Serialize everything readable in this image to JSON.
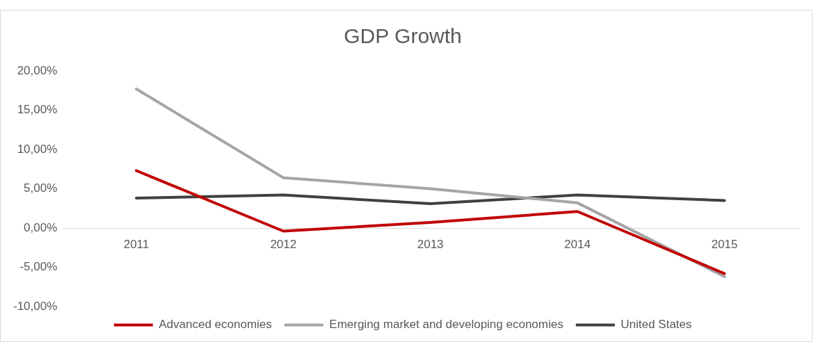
{
  "chart_data": {
    "type": "line",
    "title": "GDP Growth",
    "categories": [
      "2011",
      "2012",
      "2013",
      "2014",
      "2015"
    ],
    "series": [
      {
        "name": "Advanced economies",
        "color": "#c00000",
        "values": [
          7.3,
          -0.4,
          0.7,
          2.1,
          -5.8
        ]
      },
      {
        "name": "Emerging market and developing economies",
        "color": "#a5a5a5",
        "values": [
          17.7,
          6.4,
          5.0,
          3.2,
          -6.2
        ]
      },
      {
        "name": "United States",
        "color": "#404040",
        "values": [
          3.8,
          4.2,
          3.1,
          4.2,
          3.5
        ]
      }
    ],
    "ylim": [
      -10,
      20
    ],
    "yticks": [
      {
        "value": -10,
        "label": "-10,00%"
      },
      {
        "value": -5,
        "label": "-5,00%"
      },
      {
        "value": 0,
        "label": "0,00%"
      },
      {
        "value": 5,
        "label": "5,00%"
      },
      {
        "value": 10,
        "label": "10,00%"
      },
      {
        "value": 15,
        "label": "15,00%"
      },
      {
        "value": 20,
        "label": "20,00%"
      }
    ],
    "grid": false,
    "legend": "bottom",
    "marker": "none",
    "line_style": "solid"
  }
}
